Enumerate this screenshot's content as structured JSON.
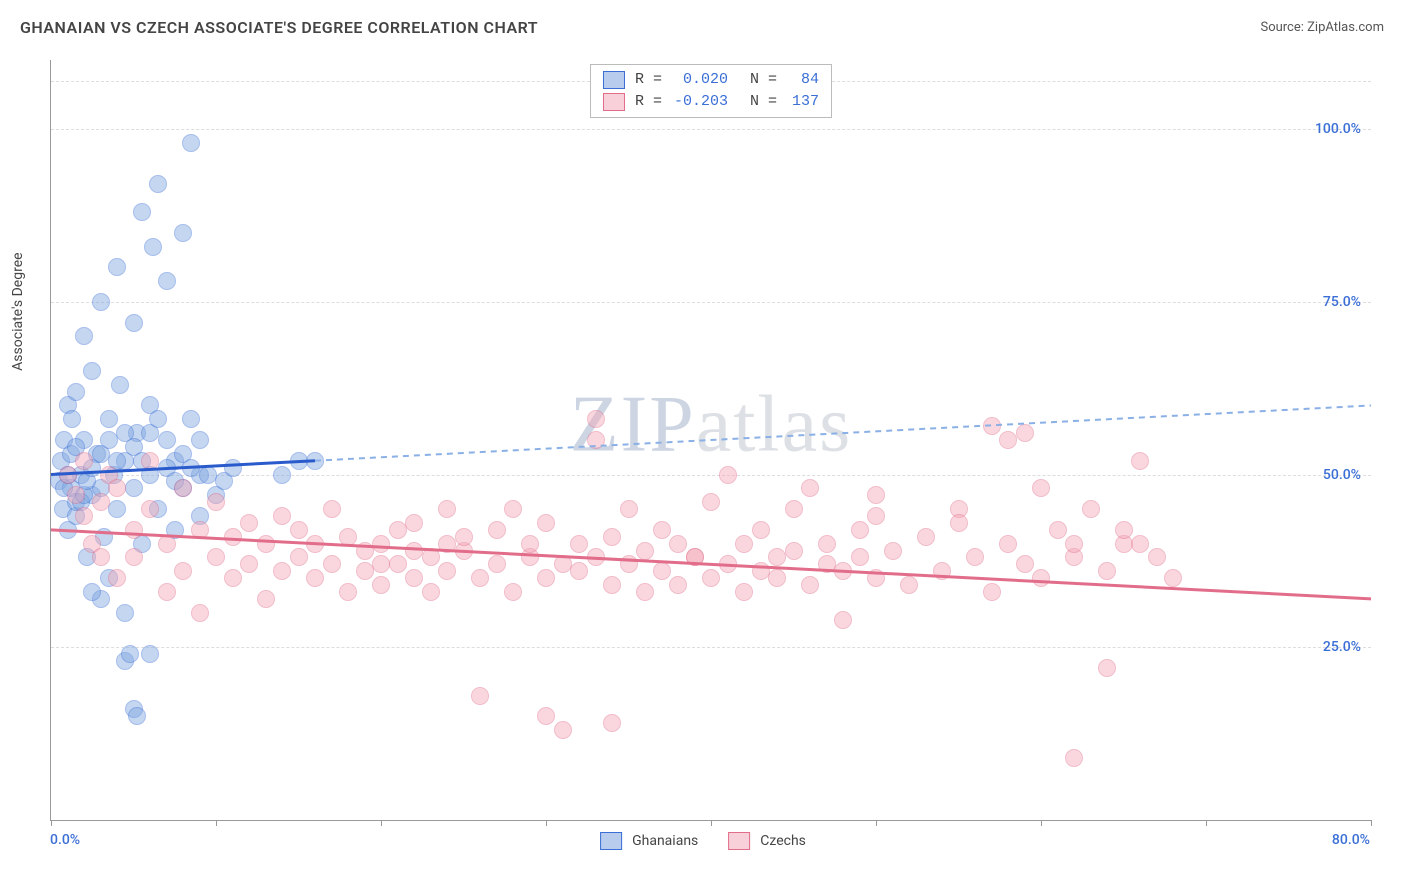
{
  "title": "GHANAIAN VS CZECH ASSOCIATE'S DEGREE CORRELATION CHART",
  "source_label": "Source: ",
  "source_value": "ZipAtlas.com",
  "yaxis_label": "Associate's Degree",
  "watermark_left": "ZIP",
  "watermark_right": "atlas",
  "chart": {
    "type": "scatter",
    "x_min": 0,
    "x_max": 80,
    "y_min_plot": 0,
    "y_max_plot": 110,
    "x_ticks": [
      0,
      10,
      20,
      30,
      40,
      50,
      60,
      70,
      80
    ],
    "y_ticks": [
      25,
      50,
      75,
      100
    ],
    "y_tick_labels": [
      "25.0%",
      "50.0%",
      "75.0%",
      "100.0%"
    ],
    "x_min_label": "0.0%",
    "x_max_label": "80.0%",
    "background_color": "#ffffff",
    "grid_color": "#dddddd",
    "axis_color": "#999999",
    "tick_label_color": "#3b6fd6",
    "marker_radius": 8,
    "marker_opacity": 0.45,
    "series": [
      {
        "name": "Ghanaians",
        "fill_color": "#7ea6e0",
        "stroke_color": "#3b6fd6",
        "line_color": "#2a5bcc",
        "line_dash_color": "#8ab0e6",
        "r_value": "0.020",
        "n_value": "84",
        "regression_solid": {
          "x1": 0,
          "y1": 50,
          "x2": 16,
          "y2": 52
        },
        "regression_dash": {
          "x1": 16,
          "y1": 52,
          "x2": 80,
          "y2": 60
        },
        "points": [
          [
            0.5,
            49
          ],
          [
            0.6,
            52
          ],
          [
            0.7,
            45
          ],
          [
            0.8,
            55
          ],
          [
            1.0,
            42
          ],
          [
            1.0,
            60
          ],
          [
            1.2,
            48
          ],
          [
            1.3,
            58
          ],
          [
            1.5,
            62
          ],
          [
            1.5,
            44
          ],
          [
            1.8,
            50
          ],
          [
            2.0,
            70
          ],
          [
            2.0,
            55
          ],
          [
            2.2,
            38
          ],
          [
            2.5,
            47
          ],
          [
            2.5,
            65
          ],
          [
            2.8,
            53
          ],
          [
            3.0,
            48
          ],
          [
            3.0,
            75
          ],
          [
            3.2,
            41
          ],
          [
            3.5,
            58
          ],
          [
            3.5,
            35
          ],
          [
            3.8,
            50
          ],
          [
            4.0,
            80
          ],
          [
            4.0,
            45
          ],
          [
            4.2,
            63
          ],
          [
            4.5,
            52
          ],
          [
            4.5,
            30
          ],
          [
            5.0,
            72
          ],
          [
            5.0,
            48
          ],
          [
            5.2,
            56
          ],
          [
            5.5,
            88
          ],
          [
            5.5,
            40
          ],
          [
            6.0,
            60
          ],
          [
            6.0,
            50
          ],
          [
            6.2,
            83
          ],
          [
            6.5,
            45
          ],
          [
            6.5,
            92
          ],
          [
            7.0,
            55
          ],
          [
            7.0,
            78
          ],
          [
            7.5,
            42
          ],
          [
            7.5,
            52
          ],
          [
            8.0,
            85
          ],
          [
            8.0,
            48
          ],
          [
            8.5,
            58
          ],
          [
            8.5,
            98
          ],
          [
            9.0,
            50
          ],
          [
            9.0,
            44
          ],
          [
            4.5,
            23
          ],
          [
            4.8,
            24
          ],
          [
            6.0,
            24
          ],
          [
            3.0,
            32
          ],
          [
            2.5,
            33
          ],
          [
            5.0,
            16
          ],
          [
            5.2,
            15
          ],
          [
            1.5,
            46
          ],
          [
            1.8,
            46
          ],
          [
            0.8,
            48
          ],
          [
            1.0,
            50
          ],
          [
            1.2,
            53
          ],
          [
            1.5,
            54
          ],
          [
            2.0,
            47
          ],
          [
            2.2,
            49
          ],
          [
            2.5,
            51
          ],
          [
            3.0,
            53
          ],
          [
            3.5,
            55
          ],
          [
            4.0,
            52
          ],
          [
            4.5,
            56
          ],
          [
            5.0,
            54
          ],
          [
            5.5,
            52
          ],
          [
            6.0,
            56
          ],
          [
            6.5,
            58
          ],
          [
            7.0,
            51
          ],
          [
            7.5,
            49
          ],
          [
            8.0,
            53
          ],
          [
            8.5,
            51
          ],
          [
            9.0,
            55
          ],
          [
            9.5,
            50
          ],
          [
            10.0,
            47
          ],
          [
            10.5,
            49
          ],
          [
            11.0,
            51
          ],
          [
            14.0,
            50
          ],
          [
            15.0,
            52
          ],
          [
            16.0,
            52
          ]
        ]
      },
      {
        "name": "Czechs",
        "fill_color": "#f4a8b8",
        "stroke_color": "#e26d8a",
        "line_color": "#e26d8a",
        "r_value": "-0.203",
        "n_value": "137",
        "regression_solid": {
          "x1": 0,
          "y1": 42,
          "x2": 80,
          "y2": 32
        },
        "points": [
          [
            1,
            50
          ],
          [
            1.5,
            47
          ],
          [
            2,
            44
          ],
          [
            2,
            52
          ],
          [
            2.5,
            40
          ],
          [
            3,
            46
          ],
          [
            3,
            38
          ],
          [
            3.5,
            50
          ],
          [
            4,
            35
          ],
          [
            4,
            48
          ],
          [
            5,
            42
          ],
          [
            5,
            38
          ],
          [
            6,
            45
          ],
          [
            6,
            52
          ],
          [
            7,
            40
          ],
          [
            7,
            33
          ],
          [
            8,
            36
          ],
          [
            8,
            48
          ],
          [
            9,
            42
          ],
          [
            9,
            30
          ],
          [
            10,
            38
          ],
          [
            10,
            46
          ],
          [
            11,
            35
          ],
          [
            11,
            41
          ],
          [
            12,
            37
          ],
          [
            12,
            43
          ],
          [
            13,
            40
          ],
          [
            13,
            32
          ],
          [
            14,
            36
          ],
          [
            14,
            44
          ],
          [
            15,
            38
          ],
          [
            15,
            42
          ],
          [
            16,
            35
          ],
          [
            16,
            40
          ],
          [
            17,
            37
          ],
          [
            17,
            45
          ],
          [
            18,
            33
          ],
          [
            18,
            41
          ],
          [
            19,
            36
          ],
          [
            19,
            39
          ],
          [
            20,
            40
          ],
          [
            20,
            34
          ],
          [
            21,
            42
          ],
          [
            21,
            37
          ],
          [
            22,
            35
          ],
          [
            22,
            43
          ],
          [
            23,
            38
          ],
          [
            23,
            33
          ],
          [
            24,
            45
          ],
          [
            24,
            36
          ],
          [
            25,
            39
          ],
          [
            25,
            41
          ],
          [
            26,
            35
          ],
          [
            26,
            18
          ],
          [
            27,
            42
          ],
          [
            27,
            37
          ],
          [
            28,
            33
          ],
          [
            28,
            45
          ],
          [
            29,
            38
          ],
          [
            29,
            40
          ],
          [
            30,
            35
          ],
          [
            30,
            43
          ],
          [
            31,
            37
          ],
          [
            31,
            13
          ],
          [
            32,
            40
          ],
          [
            32,
            36
          ],
          [
            33,
            38
          ],
          [
            33,
            55
          ],
          [
            34,
            41
          ],
          [
            34,
            34
          ],
          [
            35,
            37
          ],
          [
            35,
            45
          ],
          [
            36,
            39
          ],
          [
            36,
            33
          ],
          [
            37,
            42
          ],
          [
            37,
            36
          ],
          [
            38,
            40
          ],
          [
            38,
            34
          ],
          [
            39,
            38
          ],
          [
            39,
            38
          ],
          [
            40,
            35
          ],
          [
            40,
            46
          ],
          [
            41,
            37
          ],
          [
            41,
            50
          ],
          [
            42,
            40
          ],
          [
            42,
            33
          ],
          [
            43,
            36
          ],
          [
            43,
            42
          ],
          [
            44,
            38
          ],
          [
            44,
            35
          ],
          [
            45,
            45
          ],
          [
            45,
            39
          ],
          [
            46,
            34
          ],
          [
            46,
            48
          ],
          [
            47,
            37
          ],
          [
            47,
            40
          ],
          [
            48,
            36
          ],
          [
            48,
            29
          ],
          [
            49,
            38
          ],
          [
            49,
            42
          ],
          [
            50,
            35
          ],
          [
            50,
            47
          ],
          [
            51,
            39
          ],
          [
            52,
            34
          ],
          [
            53,
            41
          ],
          [
            54,
            36
          ],
          [
            55,
            45
          ],
          [
            56,
            38
          ],
          [
            57,
            33
          ],
          [
            58,
            55
          ],
          [
            58,
            40
          ],
          [
            59,
            37
          ],
          [
            60,
            48
          ],
          [
            60,
            35
          ],
          [
            61,
            42
          ],
          [
            62,
            38
          ],
          [
            62,
            9
          ],
          [
            63,
            45
          ],
          [
            64,
            36
          ],
          [
            64,
            22
          ],
          [
            65,
            40
          ],
          [
            66,
            52
          ],
          [
            67,
            38
          ],
          [
            68,
            35
          ],
          [
            57,
            57
          ],
          [
            59,
            56
          ],
          [
            50,
            44
          ],
          [
            55,
            43
          ],
          [
            33,
            58
          ],
          [
            30,
            15
          ],
          [
            34,
            14
          ],
          [
            65,
            42
          ],
          [
            66,
            40
          ],
          [
            62,
            40
          ],
          [
            20,
            37
          ],
          [
            22,
            39
          ],
          [
            24,
            40
          ]
        ]
      }
    ]
  },
  "legend_top": {
    "r_label": "R =",
    "n_label": "N ="
  },
  "legend_bottom": {
    "items": [
      "Ghanaians",
      "Czechs"
    ]
  }
}
